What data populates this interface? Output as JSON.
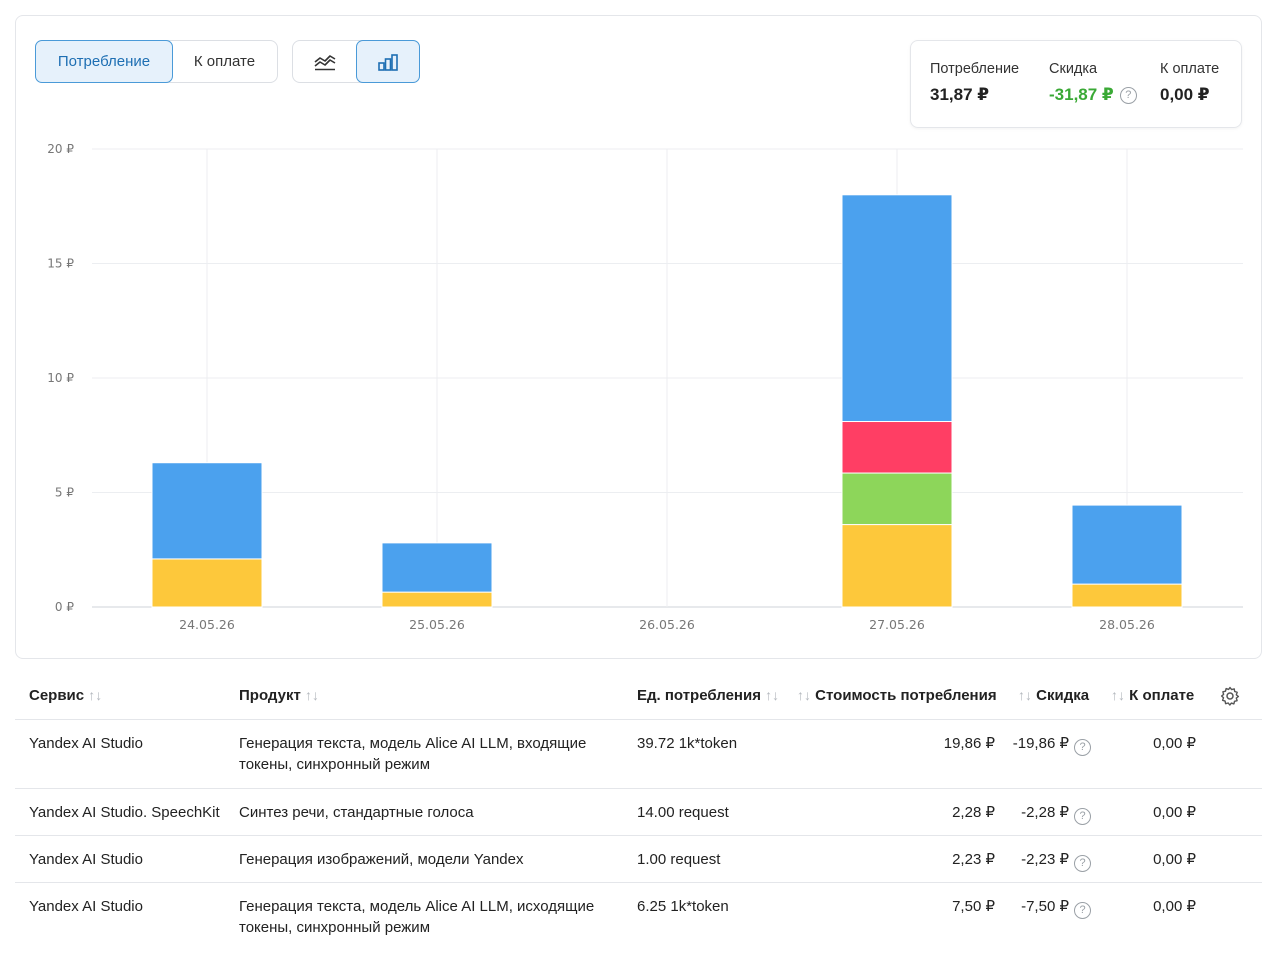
{
  "toggles": {
    "consumption": "Потребление",
    "to_pay": "К оплате"
  },
  "view_switch": {
    "line_icon": "line-chart-icon",
    "bar_icon": "bar-chart-icon",
    "active": "bar"
  },
  "summary": {
    "consumption_label": "Потребление",
    "consumption_value": "31,87 ₽",
    "discount_label": "Скидка",
    "discount_value": "-31,87 ₽",
    "to_pay_label": "К оплате",
    "to_pay_value": "0,00 ₽"
  },
  "colors": {
    "blue": "#4ba1ee",
    "yellow": "#fdc83b",
    "green": "#8dd65a",
    "red": "#ff3e64",
    "discount_green": "#3aa935"
  },
  "chart_data": {
    "type": "bar",
    "stacked": true,
    "categories": [
      "24.05.26",
      "25.05.26",
      "26.05.26",
      "27.05.26",
      "28.05.26"
    ],
    "series": [
      {
        "color": "#fdc83b",
        "values": [
          2.1,
          0.65,
          0,
          3.6,
          1.0
        ]
      },
      {
        "color": "#8dd65a",
        "values": [
          0,
          0,
          0,
          2.25,
          0
        ]
      },
      {
        "color": "#ff3e64",
        "values": [
          0,
          0,
          0,
          2.25,
          0
        ]
      },
      {
        "color": "#4ba1ee",
        "values": [
          4.2,
          2.15,
          0,
          9.9,
          3.45
        ]
      }
    ],
    "y_ticks": [
      "0 ₽",
      "5 ₽",
      "10 ₽",
      "15 ₽",
      "20 ₽"
    ],
    "ylim": [
      0,
      20
    ],
    "grid": true
  },
  "table": {
    "headers": {
      "service": "Сервис",
      "product": "Продукт",
      "unit": "Ед. потребления",
      "cost": "Стоимость потребления",
      "discount": "Скидка",
      "to_pay": "К оплате"
    },
    "sort_glyph": "↑↓",
    "rows": [
      {
        "service": "Yandex AI Studio",
        "product_line1": "Генерация текста, модель Alice AI LLM, входящие",
        "product_line2": "токены, синхронный режим",
        "unit": "39.72 1k*token",
        "cost": "19,86 ₽",
        "discount": "-19,86 ₽",
        "to_pay": "0,00 ₽"
      },
      {
        "service": "Yandex AI Studio. SpeechKit",
        "product_line1": "Синтез речи, стандартные голоса",
        "product_line2": "",
        "unit": "14.00 request",
        "cost": "2,28 ₽",
        "discount": "-2,28 ₽",
        "to_pay": "0,00 ₽"
      },
      {
        "service": "Yandex AI Studio",
        "product_line1": "Генерация изображений, модели Yandex",
        "product_line2": "",
        "unit": "1.00 request",
        "cost": "2,23 ₽",
        "discount": "-2,23 ₽",
        "to_pay": "0,00 ₽"
      },
      {
        "service": "Yandex AI Studio",
        "product_line1": "Генерация текста, модель Alice AI LLM, исходящие",
        "product_line2": "токены, синхронный режим",
        "unit": "6.25 1k*token",
        "cost": "7,50 ₽",
        "discount": "-7,50 ₽",
        "to_pay": "0,00 ₽"
      }
    ]
  }
}
